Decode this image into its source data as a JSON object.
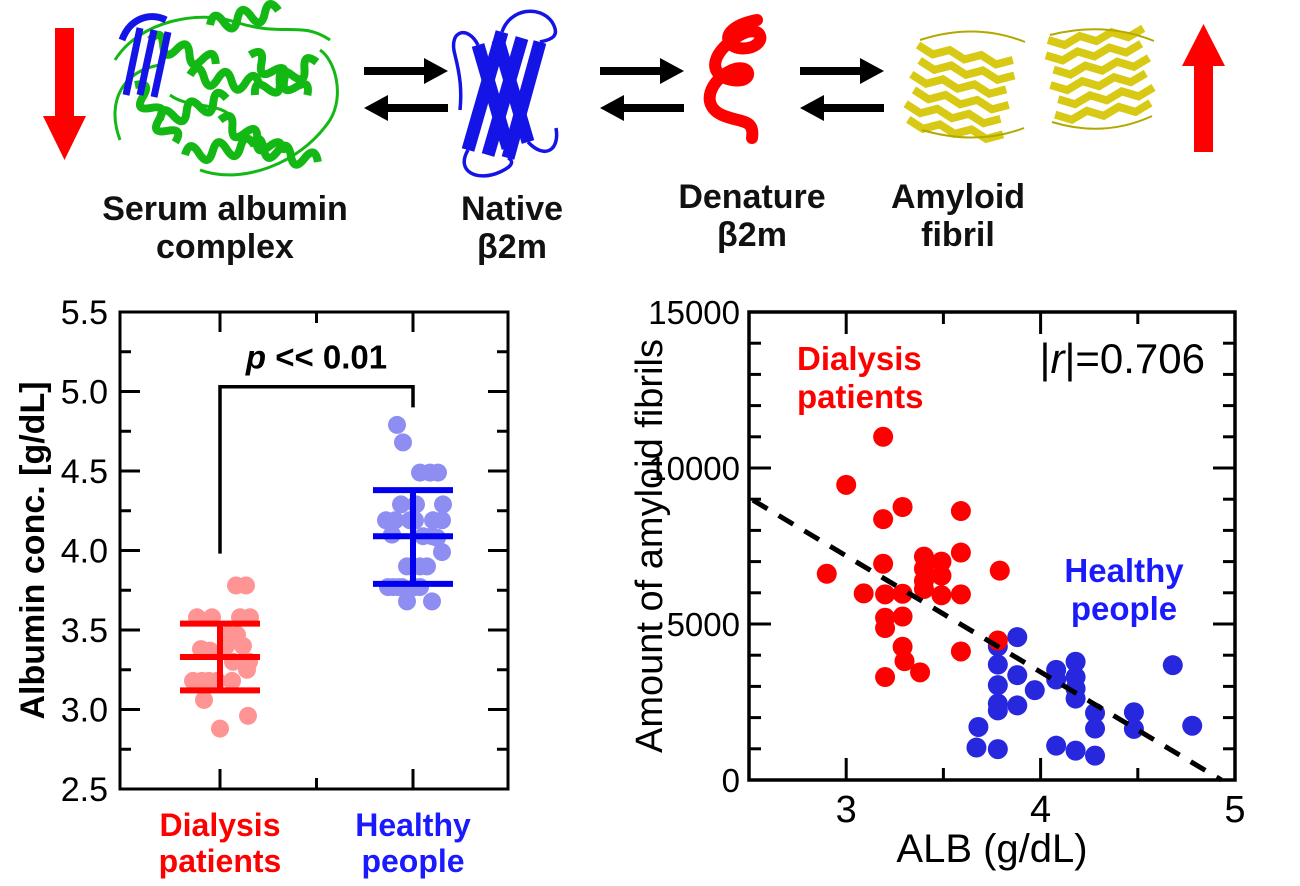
{
  "figure": {
    "background": "#ffffff"
  },
  "pathway": {
    "arrow_color": "#000000",
    "red_arrow_color": "#ff0000",
    "complex_color": "#14b814",
    "native_color": "#1414e6",
    "denature_color": "#ff0000",
    "fibril_color": "#d8ca14",
    "stages": [
      {
        "label_line1": "Serum albumin",
        "label_line2": "complex"
      },
      {
        "label_line1": "Native",
        "label_line2": "β2m"
      },
      {
        "label_line1": "Denature",
        "label_line2": "β2m"
      },
      {
        "label_line1": "Amyloid",
        "label_line2": "fibril"
      }
    ]
  },
  "chart_data": [
    {
      "type": "scatter",
      "title": "",
      "xlabel": "",
      "ylabel": "Albumin conc. [g/dL]",
      "ylim": [
        2.5,
        5.5
      ],
      "yticks": [
        2.5,
        3.0,
        3.5,
        4.0,
        4.5,
        5.0,
        5.5
      ],
      "ytick_labels": [
        "2.5",
        "3.0",
        "3.5",
        "4.0",
        "4.5",
        "5.0",
        "5.5"
      ],
      "y_minor_step": 0.25,
      "grid": false,
      "categories": [
        {
          "label_line1": "Dialysis",
          "label_line2": "patients",
          "color": "#ff0000"
        },
        {
          "label_line1": "Healthy",
          "label_line2": "people",
          "color": "#1a1aff"
        }
      ],
      "series": [
        {
          "name": "Dialysis patients",
          "dot_color": "#ff9494",
          "bar_color": "#ff0000",
          "mean": 3.33,
          "upper": 3.54,
          "lower": 3.12,
          "points": [
            [
              16,
              3.78
            ],
            [
              26,
              3.78
            ],
            [
              -23,
              3.58
            ],
            [
              -8,
              3.58
            ],
            [
              20,
              3.58
            ],
            [
              30,
              3.58
            ],
            [
              8,
              3.47
            ],
            [
              17,
              3.47
            ],
            [
              6,
              3.4
            ],
            [
              23,
              3.4
            ],
            [
              -19,
              3.38
            ],
            [
              -10,
              3.37
            ],
            [
              13,
              3.3
            ],
            [
              29,
              3.3
            ],
            [
              27,
              3.25
            ],
            [
              -27,
              3.18
            ],
            [
              -18,
              3.18
            ],
            [
              -11,
              3.18
            ],
            [
              -3,
              3.18
            ],
            [
              12,
              3.18
            ],
            [
              -16,
              3.06
            ],
            [
              28,
              2.96
            ],
            [
              0,
              2.88
            ]
          ]
        },
        {
          "name": "Healthy people",
          "dot_color": "#8e8ef2",
          "bar_color": "#0000ee",
          "mean": 4.09,
          "upper": 4.38,
          "lower": 3.79,
          "points": [
            [
              -16,
              4.79
            ],
            [
              -10,
              4.68
            ],
            [
              7,
              4.49
            ],
            [
              17,
              4.49
            ],
            [
              25,
              4.49
            ],
            [
              -12,
              4.29
            ],
            [
              3,
              4.29
            ],
            [
              30,
              4.29
            ],
            [
              -27,
              4.19
            ],
            [
              -18,
              4.19
            ],
            [
              -3,
              4.19
            ],
            [
              2,
              4.19
            ],
            [
              20,
              4.19
            ],
            [
              29,
              4.19
            ],
            [
              -21,
              4.1
            ],
            [
              10,
              4.09
            ],
            [
              19,
              4.09
            ],
            [
              24,
              4.08
            ],
            [
              29,
              3.99
            ],
            [
              -6,
              3.9
            ],
            [
              7,
              3.9
            ],
            [
              14,
              3.9
            ],
            [
              -25,
              3.77
            ],
            [
              -20,
              3.77
            ],
            [
              -15,
              3.77
            ],
            [
              -11,
              3.77
            ],
            [
              2,
              3.77
            ],
            [
              7,
              3.77
            ],
            [
              -6,
              3.68
            ],
            [
              19,
              3.68
            ]
          ]
        }
      ],
      "significance": {
        "label_symbol": "p",
        "label_rest": " << 0.01",
        "bar_value": 5.03,
        "left_drop_value": 3.98,
        "right_drop_value": 4.9
      }
    },
    {
      "type": "scatter",
      "title": "",
      "xlabel": "ALB (g/dL)",
      "ylabel": "Amount of amyloid fibrils",
      "xlim": [
        2.5,
        5.0
      ],
      "ylim": [
        0,
        15000
      ],
      "xticks": [
        3,
        4,
        5
      ],
      "xtick_labels": [
        "3",
        "4",
        "5"
      ],
      "x_minor_step": 0.5,
      "yticks": [
        0,
        5000,
        10000,
        15000
      ],
      "ytick_labels": [
        "0",
        "5000",
        "10000",
        "15000"
      ],
      "y_minor_step": 1000,
      "grid": false,
      "legend_position": "inside",
      "correlation": {
        "pre": "|",
        "italic": "r",
        "post": "|=0.706"
      },
      "trendline": {
        "style": "dashed",
        "x1": 2.52,
        "y1": 8970,
        "x2": 4.93,
        "y2": 0
      },
      "series": [
        {
          "name": "Healthy people",
          "color": "#2727dd",
          "label_line1": "Healthy",
          "label_line2": "people",
          "label_color": "#1a1aff",
          "points": [
            [
              3.78,
              4280
            ],
            [
              3.88,
              4580
            ],
            [
              3.78,
              3700
            ],
            [
              3.88,
              3360
            ],
            [
              3.78,
              3040
            ],
            [
              3.97,
              2880
            ],
            [
              3.78,
              2450
            ],
            [
              3.78,
              2230
            ],
            [
              3.88,
              2390
            ],
            [
              3.68,
              1700
            ],
            [
              3.67,
              1040
            ],
            [
              3.78,
              990
            ],
            [
              4.08,
              3530
            ],
            [
              4.08,
              3220
            ],
            [
              4.08,
              1100
            ],
            [
              4.18,
              3790
            ],
            [
              4.18,
              3300
            ],
            [
              4.18,
              2930
            ],
            [
              4.18,
              2610
            ],
            [
              4.18,
              940
            ],
            [
              4.28,
              2150
            ],
            [
              4.28,
              1650
            ],
            [
              4.28,
              780
            ],
            [
              4.48,
              2170
            ],
            [
              4.48,
              1640
            ],
            [
              4.68,
              3680
            ],
            [
              4.78,
              1740
            ]
          ]
        },
        {
          "name": "Dialysis patients",
          "color": "#ff0000",
          "label_line1": "Dialysis",
          "label_line2": "patients",
          "label_color": "#ff0000",
          "points": [
            [
              3.19,
              11000
            ],
            [
              3.0,
              9460
            ],
            [
              3.29,
              8750
            ],
            [
              3.19,
              8360
            ],
            [
              3.59,
              8620
            ],
            [
              3.59,
              7290
            ],
            [
              3.19,
              6930
            ],
            [
              3.4,
              7160
            ],
            [
              3.49,
              7000
            ],
            [
              3.4,
              6770
            ],
            [
              3.49,
              6550
            ],
            [
              3.4,
              6380
            ],
            [
              3.4,
              6120
            ],
            [
              2.9,
              6610
            ],
            [
              3.79,
              6710
            ],
            [
              3.09,
              5980
            ],
            [
              3.2,
              5950
            ],
            [
              3.29,
              5970
            ],
            [
              3.49,
              5920
            ],
            [
              3.59,
              5950
            ],
            [
              3.2,
              5200
            ],
            [
              3.29,
              5240
            ],
            [
              3.2,
              4870
            ],
            [
              3.29,
              4270
            ],
            [
              3.3,
              3810
            ],
            [
              3.2,
              3300
            ],
            [
              3.38,
              3450
            ],
            [
              3.59,
              4120
            ],
            [
              3.78,
              4470
            ]
          ]
        }
      ]
    }
  ]
}
